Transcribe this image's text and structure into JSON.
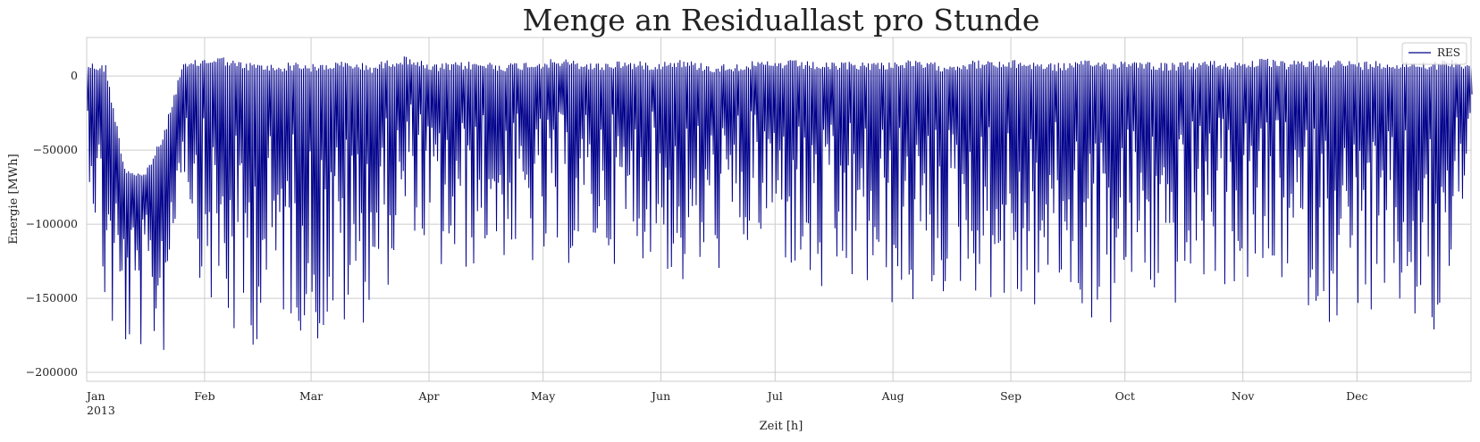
{
  "chart_data": {
    "type": "line",
    "title": "Menge an Residuallast pro Stunde",
    "xlabel": "Zeit [h]",
    "ylabel": "Energie [MWh]",
    "ylim": [
      -206000,
      26000
    ],
    "xlim": [
      "2013-01-01",
      "2013-12-31"
    ],
    "grid": true,
    "legend_placement": "top-right",
    "x_ticks": [
      {
        "date": "2013-01-01",
        "label": "Jan",
        "sublabel": "2013"
      },
      {
        "date": "2013-02-01",
        "label": "Feb"
      },
      {
        "date": "2013-03-01",
        "label": "Mar"
      },
      {
        "date": "2013-04-01",
        "label": "Apr"
      },
      {
        "date": "2013-05-01",
        "label": "May"
      },
      {
        "date": "2013-06-01",
        "label": "Jun"
      },
      {
        "date": "2013-07-01",
        "label": "Jul"
      },
      {
        "date": "2013-08-01",
        "label": "Aug"
      },
      {
        "date": "2013-09-01",
        "label": "Sep"
      },
      {
        "date": "2013-10-01",
        "label": "Oct"
      },
      {
        "date": "2013-11-01",
        "label": "Nov"
      },
      {
        "date": "2013-12-01",
        "label": "Dec"
      }
    ],
    "y_ticks": [
      {
        "value": 0,
        "label": "0"
      },
      {
        "value": -50000,
        "label": "−50000"
      },
      {
        "value": -100000,
        "label": "−100000"
      },
      {
        "value": -150000,
        "label": "−150000"
      },
      {
        "value": -200000,
        "label": "−200000"
      }
    ],
    "series": [
      {
        "name": "RES",
        "color": "#00008b",
        "resolution": "daily_range",
        "x": [
          "2013-01-01",
          "2013-01-06",
          "2013-01-11",
          "2013-01-16",
          "2013-01-21",
          "2013-01-26",
          "2013-01-31",
          "2013-02-05",
          "2013-02-10",
          "2013-02-15",
          "2013-02-20",
          "2013-02-25",
          "2013-03-02",
          "2013-03-07",
          "2013-03-12",
          "2013-03-17",
          "2013-03-22",
          "2013-03-27",
          "2013-04-01",
          "2013-04-06",
          "2013-04-11",
          "2013-04-16",
          "2013-04-21",
          "2013-04-26",
          "2013-05-01",
          "2013-05-06",
          "2013-05-11",
          "2013-05-16",
          "2013-05-21",
          "2013-05-26",
          "2013-05-31",
          "2013-06-05",
          "2013-06-10",
          "2013-06-15",
          "2013-06-20",
          "2013-06-25",
          "2013-06-30",
          "2013-07-05",
          "2013-07-10",
          "2013-07-15",
          "2013-07-20",
          "2013-07-25",
          "2013-07-30",
          "2013-08-04",
          "2013-08-09",
          "2013-08-14",
          "2013-08-19",
          "2013-08-24",
          "2013-08-29",
          "2013-09-03",
          "2013-09-08",
          "2013-09-13",
          "2013-09-18",
          "2013-09-23",
          "2013-09-28",
          "2013-10-03",
          "2013-10-08",
          "2013-10-13",
          "2013-10-18",
          "2013-10-23",
          "2013-10-28",
          "2013-11-02",
          "2013-11-07",
          "2013-11-12",
          "2013-11-17",
          "2013-11-22",
          "2013-11-27",
          "2013-12-02",
          "2013-12-07",
          "2013-12-12",
          "2013-12-17",
          "2013-12-22",
          "2013-12-27",
          "2013-12-31"
        ],
        "max": [
          10000,
          8000,
          -60000,
          -65000,
          -40000,
          8000,
          12000,
          14000,
          10000,
          9000,
          8000,
          10000,
          8000,
          10000,
          10000,
          8000,
          12000,
          14000,
          8000,
          9000,
          10000,
          10000,
          9000,
          10000,
          11000,
          12000,
          10000,
          9000,
          11000,
          10000,
          10000,
          12000,
          10000,
          8000,
          9000,
          10000,
          10000,
          11000,
          10000,
          9000,
          10000,
          10000,
          10000,
          11000,
          10000,
          9000,
          10000,
          11000,
          10000,
          11000,
          10000,
          9000,
          10000,
          11000,
          10000,
          12000,
          10000,
          9000,
          10000,
          11000,
          10000,
          11000,
          12000,
          10000,
          11000,
          12000,
          11000,
          10000,
          11000,
          10000,
          11000,
          10000,
          12000,
          10000
        ],
        "min": [
          -60000,
          -178000,
          -190000,
          -185000,
          -190000,
          -60000,
          -145000,
          -175000,
          -192000,
          -180000,
          -165000,
          -170000,
          -185000,
          -175000,
          -180000,
          -155000,
          -140000,
          -100000,
          -130000,
          -140000,
          -135000,
          -120000,
          -125000,
          -130000,
          -135000,
          -130000,
          -125000,
          -120000,
          -130000,
          -125000,
          -120000,
          -150000,
          -140000,
          -135000,
          -125000,
          -120000,
          -115000,
          -135000,
          -150000,
          -160000,
          -145000,
          -150000,
          -155000,
          -165000,
          -155000,
          -150000,
          -145000,
          -150000,
          -155000,
          -165000,
          -160000,
          -150000,
          -160000,
          -170000,
          -175000,
          -145000,
          -155000,
          -160000,
          -150000,
          -140000,
          -145000,
          -145000,
          -150000,
          -140000,
          -155000,
          -165000,
          -170000,
          -155000,
          -190000,
          -165000,
          -175000,
          -196000,
          -120000,
          -40000
        ]
      }
    ]
  }
}
